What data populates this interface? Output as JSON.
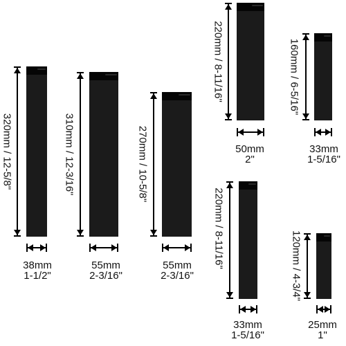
{
  "colors": {
    "guard": "#1b1b1b",
    "guard_lip": "#050505",
    "dimension_lines": "#000000",
    "background": "#ffffff"
  },
  "guards": [
    {
      "length_label": "320mm / 12-5/8\"",
      "width_mm": "38mm",
      "width_in": "1-1/2\""
    },
    {
      "length_label": "310mm / 12-3/16\"",
      "width_mm": "55mm",
      "width_in": "2-3/16\""
    },
    {
      "length_label": "270mm / 10-5/8\"",
      "width_mm": "55mm",
      "width_in": "2-3/16\""
    },
    {
      "length_label": "220mm / 8-11/16\"",
      "width_mm": "50mm",
      "width_in": "2\""
    },
    {
      "length_label": "160mm / 6-5/16\"",
      "width_mm": "33mm",
      "width_in": "1-5/16\""
    },
    {
      "length_label": "220mm / 8-11/16\"",
      "width_mm": "33mm",
      "width_in": "1-5/16\""
    },
    {
      "length_label": "120mm / 4-3/4\"",
      "width_mm": "25mm",
      "width_in": "1\""
    }
  ]
}
